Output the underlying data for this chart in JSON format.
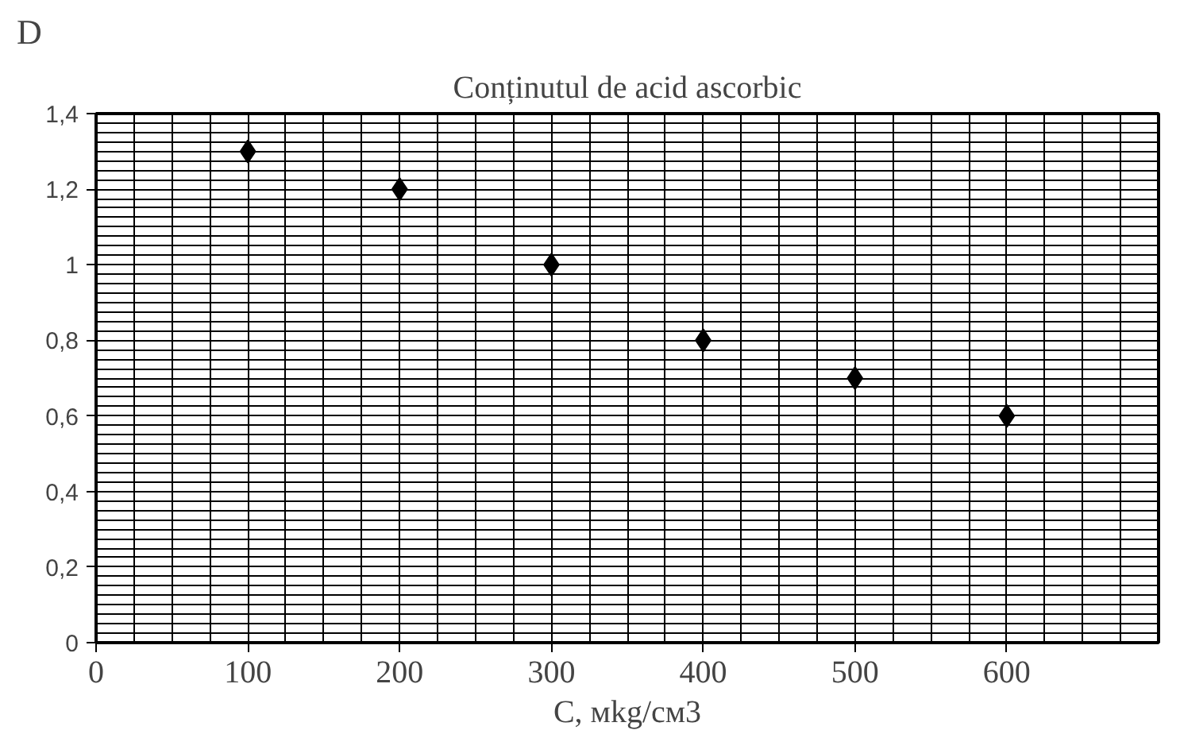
{
  "chart_data": {
    "type": "scatter",
    "title": "Conținutul de acid ascorbic",
    "xlabel": "C, мkg/см3",
    "ylabel": "D",
    "x": [
      100,
      200,
      300,
      400,
      500,
      600
    ],
    "series": [
      {
        "color": "#000000",
        "values": [
          1.3,
          1.2,
          1.0,
          0.8,
          0.7,
          0.6
        ]
      }
    ],
    "marker": "diamond",
    "xlim": [
      0,
      700
    ],
    "xticks": [
      0,
      100,
      200,
      300,
      400,
      500,
      600
    ],
    "ylim": [
      0,
      1.4
    ],
    "yticks": [
      0,
      {
        "value": 0.2,
        "label": "0,2"
      },
      {
        "value": 0.4,
        "label": "0,4"
      },
      {
        "value": 0.6,
        "label": "0,6"
      },
      {
        "value": 0.8,
        "label": "0,8"
      },
      1,
      {
        "value": 1.2,
        "label": "1,2"
      },
      {
        "value": 1.4,
        "label": "1,4"
      }
    ],
    "grid": true
  }
}
